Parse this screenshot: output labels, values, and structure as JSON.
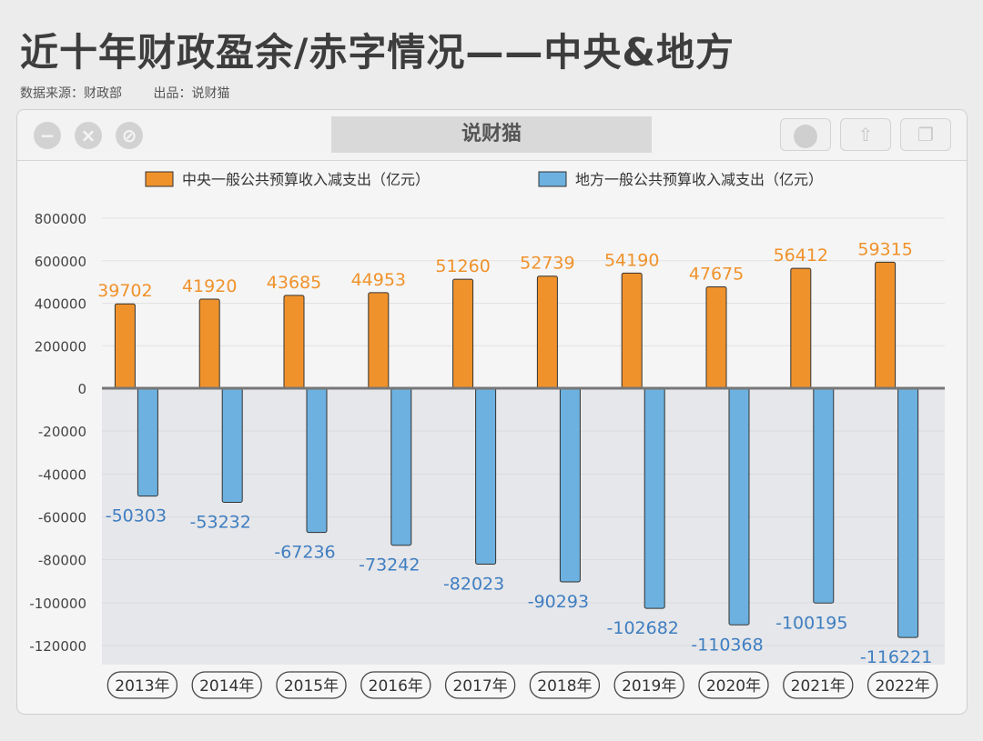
{
  "header": {
    "title": "近十年财政盈余/赤字情况——中央&地方",
    "source": "数据来源：财政部",
    "producer": "出品：说财猫"
  },
  "window": {
    "title": "说财猫"
  },
  "colors": {
    "central": "#f0922b",
    "local": "#6cb1df",
    "central_label": "#f0922b",
    "local_label": "#3f7ec1"
  },
  "chart_data": {
    "type": "bar",
    "categories": [
      "2013年",
      "2014年",
      "2015年",
      "2016年",
      "2017年",
      "2018年",
      "2019年",
      "2020年",
      "2021年",
      "2022年"
    ],
    "series": [
      {
        "name": "中央一般公共预算收入减支出（亿元）",
        "values": [
          39702,
          41920,
          43685,
          44953,
          51260,
          52739,
          54190,
          47675,
          56412,
          59315
        ]
      },
      {
        "name": "地方一般公共预算收入减支出（亿元）",
        "values": [
          -50303,
          -53232,
          -67236,
          -73242,
          -82023,
          -90293,
          -102682,
          -110368,
          -100195,
          -116221
        ]
      }
    ],
    "y_ticks_positive": [
      "800000",
      "600000",
      "400000",
      "200000",
      "0"
    ],
    "y_ticks_negative": [
      "-20000",
      "-40000",
      "-60000",
      "-80000",
      "-100000",
      "-120000"
    ],
    "ylim_positive": [
      0,
      800000
    ],
    "ylim_negative": [
      -120000,
      0
    ],
    "legend_position": "top",
    "grid": true
  }
}
